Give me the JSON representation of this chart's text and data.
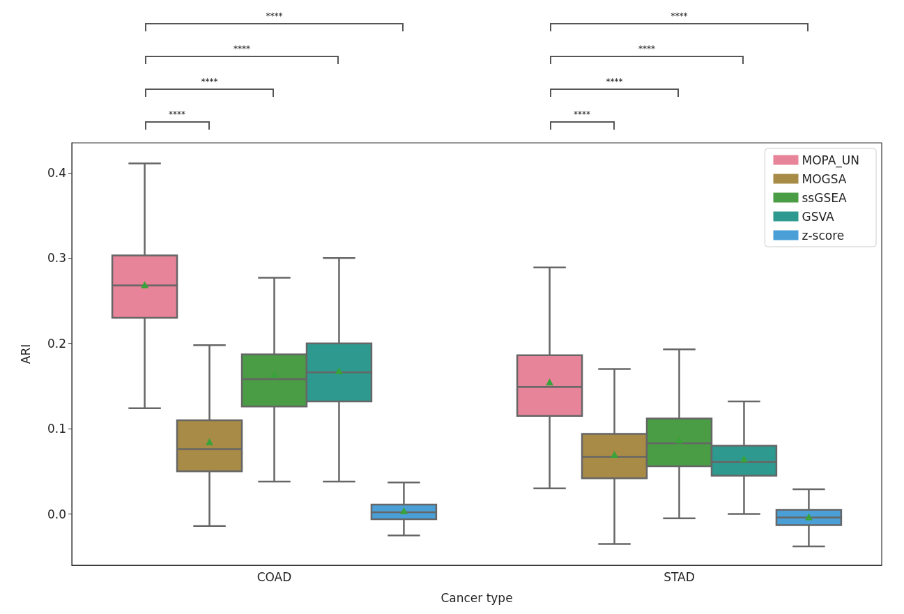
{
  "chart_data": {
    "type": "box",
    "xlabel": "Cancer type",
    "ylabel": "ARI",
    "categories": [
      "COAD",
      "STAD"
    ],
    "ylim": [
      -0.06,
      0.435
    ],
    "yticks": [
      {
        "value": 0,
        "label": "0.0"
      },
      {
        "value": 0.1,
        "label": "0.1"
      },
      {
        "value": 0.2,
        "label": "0.2"
      },
      {
        "value": 0.3,
        "label": "0.3"
      },
      {
        "value": 0.4,
        "label": "0.4"
      }
    ],
    "legend": "top right",
    "grid": false,
    "annotations": [
      "****",
      "****",
      "****",
      "****",
      "****",
      "****",
      "****",
      "****"
    ],
    "series": [
      {
        "name": "MOPA_UN",
        "color": "#e8849a",
        "boxes": [
          {
            "low": 0.124,
            "q1": 0.23,
            "median": 0.268,
            "q3": 0.303,
            "high": 0.411,
            "mean": 0.268
          },
          {
            "low": 0.03,
            "q1": 0.115,
            "median": 0.149,
            "q3": 0.186,
            "high": 0.289,
            "mean": 0.154
          }
        ]
      },
      {
        "name": "MOGSA",
        "color": "#a88b46",
        "boxes": [
          {
            "low": -0.014,
            "q1": 0.05,
            "median": 0.076,
            "q3": 0.11,
            "high": 0.198,
            "mean": 0.084
          },
          {
            "low": -0.035,
            "q1": 0.042,
            "median": 0.067,
            "q3": 0.094,
            "high": 0.17,
            "mean": 0.069
          }
        ]
      },
      {
        "name": "ssGSEA",
        "color": "#4a9c45",
        "boxes": [
          {
            "low": 0.038,
            "q1": 0.126,
            "median": 0.158,
            "q3": 0.187,
            "high": 0.277,
            "mean": 0.163
          },
          {
            "low": -0.005,
            "q1": 0.056,
            "median": 0.083,
            "q3": 0.112,
            "high": 0.193,
            "mean": 0.086
          }
        ]
      },
      {
        "name": "GSVA",
        "color": "#2e9a8f",
        "boxes": [
          {
            "low": 0.038,
            "q1": 0.132,
            "median": 0.166,
            "q3": 0.2,
            "high": 0.3,
            "mean": 0.167
          },
          {
            "low": 0,
            "q1": 0.045,
            "median": 0.061,
            "q3": 0.08,
            "high": 0.132,
            "mean": 0.064
          }
        ]
      },
      {
        "name": "z-score",
        "color": "#4a9fd6",
        "boxes": [
          {
            "low": -0.025,
            "q1": -0.006,
            "median": 0.002,
            "q3": 0.011,
            "high": 0.037,
            "mean": 0.003
          },
          {
            "low": -0.038,
            "q1": -0.013,
            "median": -0.004,
            "q3": 0.005,
            "high": 0.029,
            "mean": -0.004
          }
        ]
      }
    ]
  }
}
